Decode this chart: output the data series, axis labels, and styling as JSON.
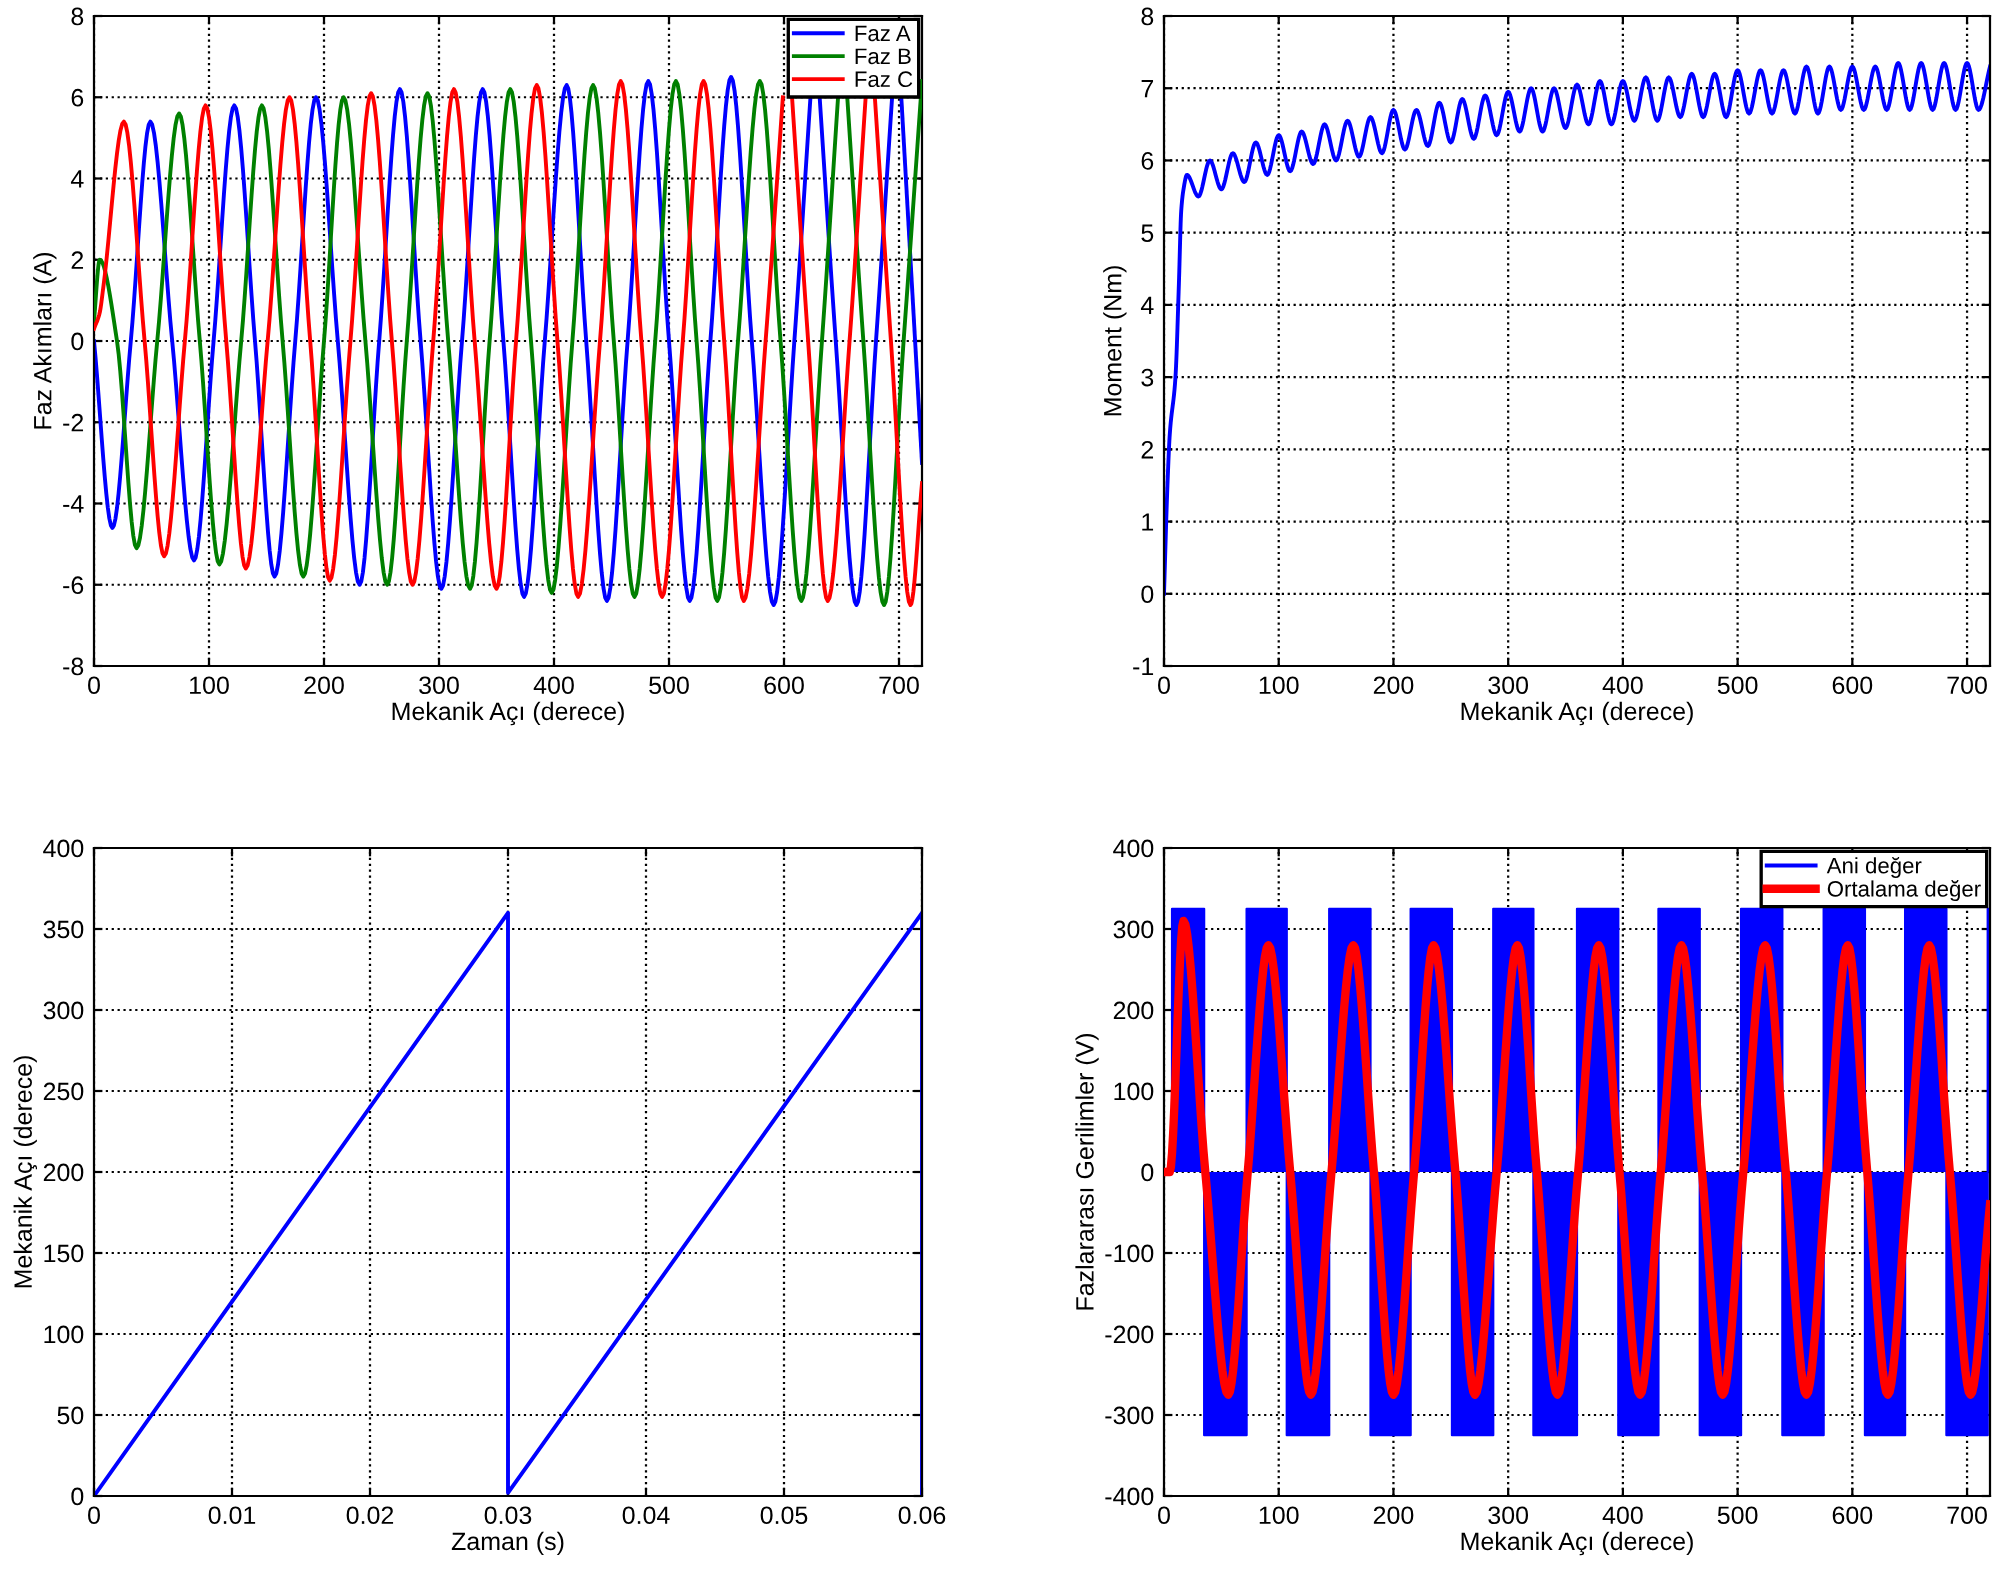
{
  "chart_data": [
    {
      "type": "line",
      "xlabel": "Mekanik Açı (derece)",
      "ylabel": "Faz Akımları (A)",
      "xlim": [
        0,
        720
      ],
      "xticks": [
        0,
        100,
        200,
        300,
        400,
        500,
        600,
        700
      ],
      "ylim": [
        -8,
        8
      ],
      "yticks": [
        -8,
        -6,
        -4,
        -2,
        0,
        2,
        4,
        6,
        8
      ],
      "grid": true,
      "legend": "top right",
      "series": [
        {
          "name": "Faz A",
          "color": "#0000ff",
          "x": [
            0,
            16,
            32,
            49,
            68,
            87,
            104,
            122,
            140,
            157,
            175,
            193,
            212,
            231,
            248,
            266,
            284,
            302,
            320,
            338,
            356,
            374,
            392,
            411,
            428,
            446,
            464,
            482,
            500,
            518,
            536,
            554,
            572,
            591,
            609,
            623,
            627,
            631,
            645,
            663,
            680,
            694,
            698,
            702,
            720
          ],
          "values": [
            0,
            -4.6,
            0,
            5.4,
            0,
            -5.4,
            0,
            5.8,
            0,
            -5.8,
            0,
            6.0,
            0,
            -6.0,
            0,
            6.2,
            0,
            -6.1,
            0,
            6.2,
            0,
            -6.3,
            0,
            6.3,
            0,
            -6.4,
            0,
            6.4,
            0,
            -6.4,
            0,
            6.5,
            0,
            -6.5,
            0,
            6.0,
            null,
            6.0,
            0,
            -6.5,
            0,
            6.0,
            null,
            6.0,
            -3
          ]
        },
        {
          "name": "Faz B",
          "color": "#008000",
          "x": [
            0,
            5,
            20,
            37,
            55,
            74,
            92,
            109,
            128,
            146,
            164,
            182,
            200,
            217,
            236,
            255,
            272,
            290,
            308,
            327,
            344,
            362,
            380,
            398,
            416,
            434,
            452,
            470,
            488,
            506,
            524,
            542,
            560,
            579,
            597,
            615,
            633,
            647,
            651,
            655,
            669,
            687,
            704,
            720
          ],
          "values": [
            0.5,
            2.0,
            0,
            -5.1,
            0,
            5.6,
            0,
            -5.5,
            0,
            5.8,
            0,
            -5.8,
            0,
            6.0,
            0,
            -6.0,
            0,
            6.1,
            0,
            -6.1,
            0,
            6.2,
            0,
            -6.2,
            0,
            6.3,
            0,
            -6.3,
            0,
            6.4,
            0,
            -6.4,
            0,
            6.4,
            0,
            -6.4,
            0,
            6.0,
            null,
            6.0,
            0,
            -6.5,
            0,
            6.4
          ]
        },
        {
          "name": "Faz C",
          "color": "#ff0000",
          "x": [
            0,
            5,
            8,
            26,
            44,
            61,
            79,
            97,
            115,
            132,
            151,
            170,
            188,
            205,
            223,
            241,
            259,
            277,
            295,
            313,
            331,
            350,
            367,
            385,
            403,
            421,
            440,
            458,
            476,
            494,
            512,
            530,
            548,
            565,
            584,
            599,
            603,
            607,
            621,
            638,
            657,
            671,
            675,
            679,
            693,
            710,
            720
          ],
          "values": [
            0.3,
            0.7,
            1.3,
            5.4,
            0,
            -5.3,
            0,
            5.8,
            0,
            -5.6,
            0,
            6.0,
            0,
            -5.9,
            0,
            6.1,
            0,
            -6.0,
            0,
            6.2,
            0,
            -6.1,
            0,
            6.3,
            0,
            -6.3,
            0,
            6.4,
            0,
            -6.3,
            0,
            6.4,
            0,
            -6.4,
            0,
            6.0,
            null,
            6.0,
            0,
            -6.4,
            0,
            6.0,
            null,
            6.0,
            0,
            -6.5,
            -3.5
          ]
        }
      ]
    },
    {
      "type": "line",
      "xlabel": "Mekanik Açı (derece)",
      "ylabel": "Moment (Nm)",
      "xlim": [
        0,
        720
      ],
      "xticks": [
        0,
        100,
        200,
        300,
        400,
        500,
        600,
        700
      ],
      "ylim": [
        -1,
        8
      ],
      "yticks": [
        -1,
        0,
        1,
        2,
        3,
        4,
        5,
        6,
        7,
        8
      ],
      "grid": true,
      "series": [
        {
          "color": "#0000ff",
          "x": [
            0,
            3,
            5,
            10,
            13,
            15,
            17,
            20,
            30,
            40,
            50,
            60,
            70,
            80,
            90,
            100,
            110,
            120,
            130,
            140,
            150,
            160,
            170,
            180,
            190,
            200,
            210,
            220,
            230,
            240,
            250,
            260,
            270,
            280,
            290,
            300,
            310,
            320,
            330,
            340,
            350,
            360,
            370,
            380,
            390,
            400,
            410,
            420,
            430,
            440,
            450,
            460,
            470,
            480,
            490,
            500,
            510,
            520,
            530,
            540,
            550,
            560,
            570,
            580,
            590,
            600,
            610,
            620,
            630,
            640,
            650,
            660,
            670,
            680,
            690,
            700,
            710,
            720
          ],
          "values": [
            0,
            1.5,
            2.2,
            3.0,
            4.3,
            5.3,
            5.6,
            5.8,
            5.5,
            6.0,
            5.6,
            6.1,
            5.7,
            6.25,
            5.8,
            6.35,
            5.85,
            6.4,
            5.95,
            6.5,
            6.0,
            6.55,
            6.05,
            6.6,
            6.1,
            6.7,
            6.15,
            6.7,
            6.2,
            6.8,
            6.25,
            6.85,
            6.3,
            6.9,
            6.35,
            6.95,
            6.4,
            7.0,
            6.4,
            7.0,
            6.45,
            7.05,
            6.5,
            7.1,
            6.5,
            7.1,
            6.55,
            7.15,
            6.55,
            7.15,
            6.6,
            7.2,
            6.6,
            7.2,
            6.6,
            7.25,
            6.65,
            7.25,
            6.65,
            7.25,
            6.65,
            7.3,
            6.65,
            7.3,
            6.7,
            7.3,
            6.7,
            7.3,
            6.7,
            7.35,
            6.7,
            7.35,
            6.7,
            7.35,
            6.7,
            7.35,
            6.7,
            7.3
          ]
        }
      ]
    },
    {
      "type": "line",
      "xlabel": "Zaman (s)",
      "ylabel": "Mekanik Açı (derece)",
      "xlim": [
        0,
        0.06
      ],
      "xticks": [
        0,
        0.01,
        0.02,
        0.03,
        0.04,
        0.05,
        0.06
      ],
      "ylim": [
        0,
        400
      ],
      "yticks": [
        0,
        50,
        100,
        150,
        200,
        250,
        300,
        350,
        400
      ],
      "grid": true,
      "series": [
        {
          "color": "#0000ff",
          "x": [
            0,
            0.03,
            0.03,
            0.06,
            0.06
          ],
          "values": [
            0,
            360,
            2,
            360,
            0
          ]
        }
      ]
    },
    {
      "type": "line",
      "xlabel": "Mekanik Açı (derece)",
      "ylabel": "Fazlararası Gerilimler (V)",
      "xlim": [
        0,
        720
      ],
      "xticks": [
        0,
        100,
        200,
        300,
        400,
        500,
        600,
        700
      ],
      "ylim": [
        -400,
        400
      ],
      "yticks": [
        -400,
        -300,
        -200,
        -100,
        0,
        100,
        200,
        300,
        400
      ],
      "grid": true,
      "legend": "top right",
      "series": [
        {
          "name": "Ani değer",
          "type": "area",
          "color": "#0000ff",
          "x": [
            0,
            7,
            7,
            35,
            35,
            72,
            72,
            107,
            107,
            144,
            144,
            180,
            180,
            215,
            215,
            251,
            251,
            287,
            287,
            322,
            322,
            360,
            360,
            396,
            396,
            431,
            431,
            467,
            467,
            503,
            503,
            539,
            539,
            575,
            575,
            611,
            611,
            646,
            646,
            682,
            682,
            718,
            718,
            720
          ],
          "values": [
            0,
            0,
            325,
            325,
            -325,
            -325,
            325,
            325,
            -325,
            -325,
            325,
            325,
            -325,
            -325,
            325,
            325,
            -325,
            -325,
            325,
            325,
            -325,
            -325,
            325,
            325,
            -325,
            -325,
            325,
            325,
            -325,
            -325,
            325,
            325,
            -325,
            -325,
            325,
            325,
            -325,
            -325,
            325,
            325,
            -325,
            -325,
            325,
            325
          ]
        },
        {
          "name": "Ortalama değer",
          "type": "line",
          "color": "#ff0000",
          "x": [
            0,
            5,
            17,
            36,
            56,
            73,
            91,
            110,
            128,
            146,
            165,
            183,
            200,
            218,
            235,
            254,
            271,
            290,
            308,
            325,
            343,
            361,
            379,
            397,
            415,
            433,
            451,
            469,
            487,
            505,
            524,
            542,
            560,
            578,
            596,
            613,
            631,
            649,
            667,
            685,
            703,
            720
          ],
          "values": [
            0,
            0,
            310,
            0,
            -275,
            0,
            280,
            0,
            -275,
            0,
            280,
            0,
            -275,
            0,
            280,
            0,
            -275,
            0,
            280,
            0,
            -275,
            0,
            280,
            0,
            -275,
            0,
            280,
            0,
            -275,
            0,
            280,
            0,
            -275,
            0,
            280,
            0,
            -275,
            0,
            280,
            0,
            -275,
            -40
          ]
        }
      ]
    }
  ]
}
